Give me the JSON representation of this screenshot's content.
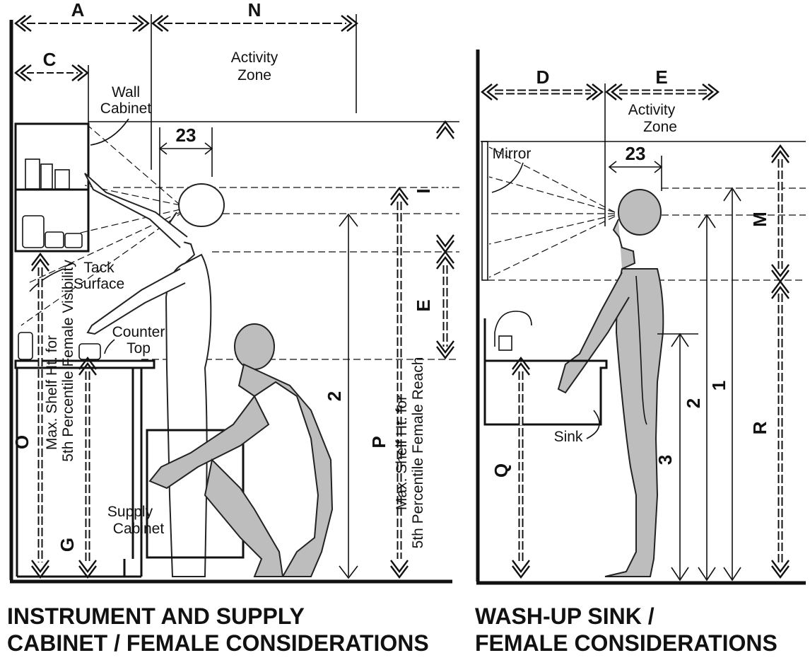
{
  "labels": {
    "A": "A",
    "N": "N",
    "C": "C",
    "D": "D",
    "E_top": "E",
    "E_vert": "E",
    "I": "I",
    "M": "M",
    "R": "R",
    "O": "O",
    "G": "G",
    "P": "P",
    "Q": "Q",
    "n23_left": "23",
    "n23_right": "23",
    "n2_left": "2",
    "n2_right": "2",
    "n1": "1",
    "n3": "3"
  },
  "left_panel": {
    "activity_zone_line1": "Activity",
    "activity_zone_line2": "Zone",
    "wall_cabinet_line1": "Wall",
    "wall_cabinet_line2": "Cabinet",
    "tack_surface_line1": "Tack",
    "tack_surface_line2": "Surface",
    "counter_top_line1": "Counter",
    "counter_top_line2": "Top",
    "supply_cabinet_line1": "Supply",
    "supply_cabinet_line2": "Cabinet",
    "visibility_line1": "Max. Shelf Ht. for",
    "visibility_line2": "5th Percentile Female Visibility",
    "reach_line1": "Max. Shelf Ht. for",
    "reach_line2": "5th Percentile Female Reach",
    "caption_line1": "INSTRUMENT AND SUPPLY",
    "caption_line2": "CABINET / FEMALE CONSIDERATIONS"
  },
  "right_panel": {
    "activity_zone_line1": "Activity",
    "activity_zone_line2": "Zone",
    "mirror": "Mirror",
    "sink": "Sink",
    "caption_line1": "WASH-UP SINK /",
    "caption_line2": "FEMALE CONSIDERATIONS"
  },
  "colors": {
    "ink": "#111111",
    "figure_fill": "#bdbdbd",
    "background": "#ffffff"
  }
}
